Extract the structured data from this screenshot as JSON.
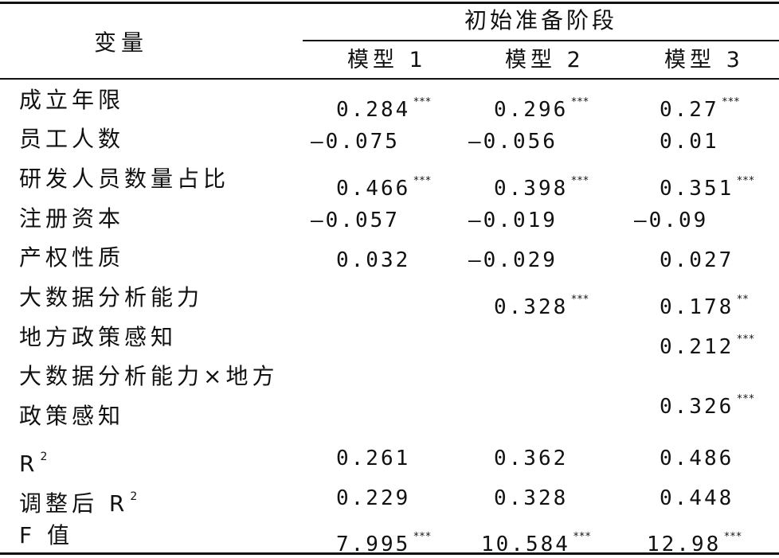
{
  "header": {
    "variable_label": "变量",
    "group_label": "初始准备阶段",
    "models": [
      "模型 1",
      "模型 2",
      "模型 3"
    ]
  },
  "rows": [
    {
      "label": "成立年限",
      "values": [
        {
          "v": "0.284",
          "sig": "***"
        },
        {
          "v": "0.296",
          "sig": "***"
        },
        {
          "v": "0.27",
          "sig": "***"
        }
      ]
    },
    {
      "label": "员工人数",
      "values": [
        {
          "v": "—0.075",
          "sig": ""
        },
        {
          "v": "—0.056",
          "sig": ""
        },
        {
          "v": "0.01",
          "sig": ""
        }
      ]
    },
    {
      "label": "研发人员数量占比",
      "values": [
        {
          "v": "0.466",
          "sig": "***"
        },
        {
          "v": "0.398",
          "sig": "***"
        },
        {
          "v": "0.351",
          "sig": "***"
        }
      ]
    },
    {
      "label": "注册资本",
      "values": [
        {
          "v": "—0.057",
          "sig": ""
        },
        {
          "v": "—0.019",
          "sig": ""
        },
        {
          "v": "—0.09",
          "sig": ""
        }
      ]
    },
    {
      "label": "产权性质",
      "values": [
        {
          "v": "0.032",
          "sig": ""
        },
        {
          "v": "—0.029",
          "sig": ""
        },
        {
          "v": "0.027",
          "sig": ""
        }
      ]
    },
    {
      "label": "大数据分析能力",
      "values": [
        {
          "v": "",
          "sig": ""
        },
        {
          "v": "0.328",
          "sig": "***"
        },
        {
          "v": "0.178",
          "sig": "**"
        }
      ]
    },
    {
      "label": "地方政策感知",
      "values": [
        {
          "v": "",
          "sig": ""
        },
        {
          "v": "",
          "sig": ""
        },
        {
          "v": "0.212",
          "sig": "***"
        }
      ]
    },
    {
      "label_line1": "大数据分析能力×地方",
      "label_line2": "政策感知",
      "values": [
        {
          "v": "",
          "sig": ""
        },
        {
          "v": "",
          "sig": ""
        },
        {
          "v": "0.326",
          "sig": "***"
        }
      ]
    },
    {
      "label": "R",
      "label_sup": "2",
      "values": [
        {
          "v": "0.261",
          "sig": ""
        },
        {
          "v": "0.362",
          "sig": ""
        },
        {
          "v": "0.486",
          "sig": ""
        }
      ]
    },
    {
      "label": "调整后 R",
      "label_sup": "2",
      "values": [
        {
          "v": "0.229",
          "sig": ""
        },
        {
          "v": "0.328",
          "sig": ""
        },
        {
          "v": "0.448",
          "sig": ""
        }
      ]
    },
    {
      "label": "F 值",
      "values": [
        {
          "v": "7.995",
          "sig": "***"
        },
        {
          "v": "10.584",
          "sig": "***"
        },
        {
          "v": "12.98",
          "sig": "***"
        }
      ]
    }
  ]
}
